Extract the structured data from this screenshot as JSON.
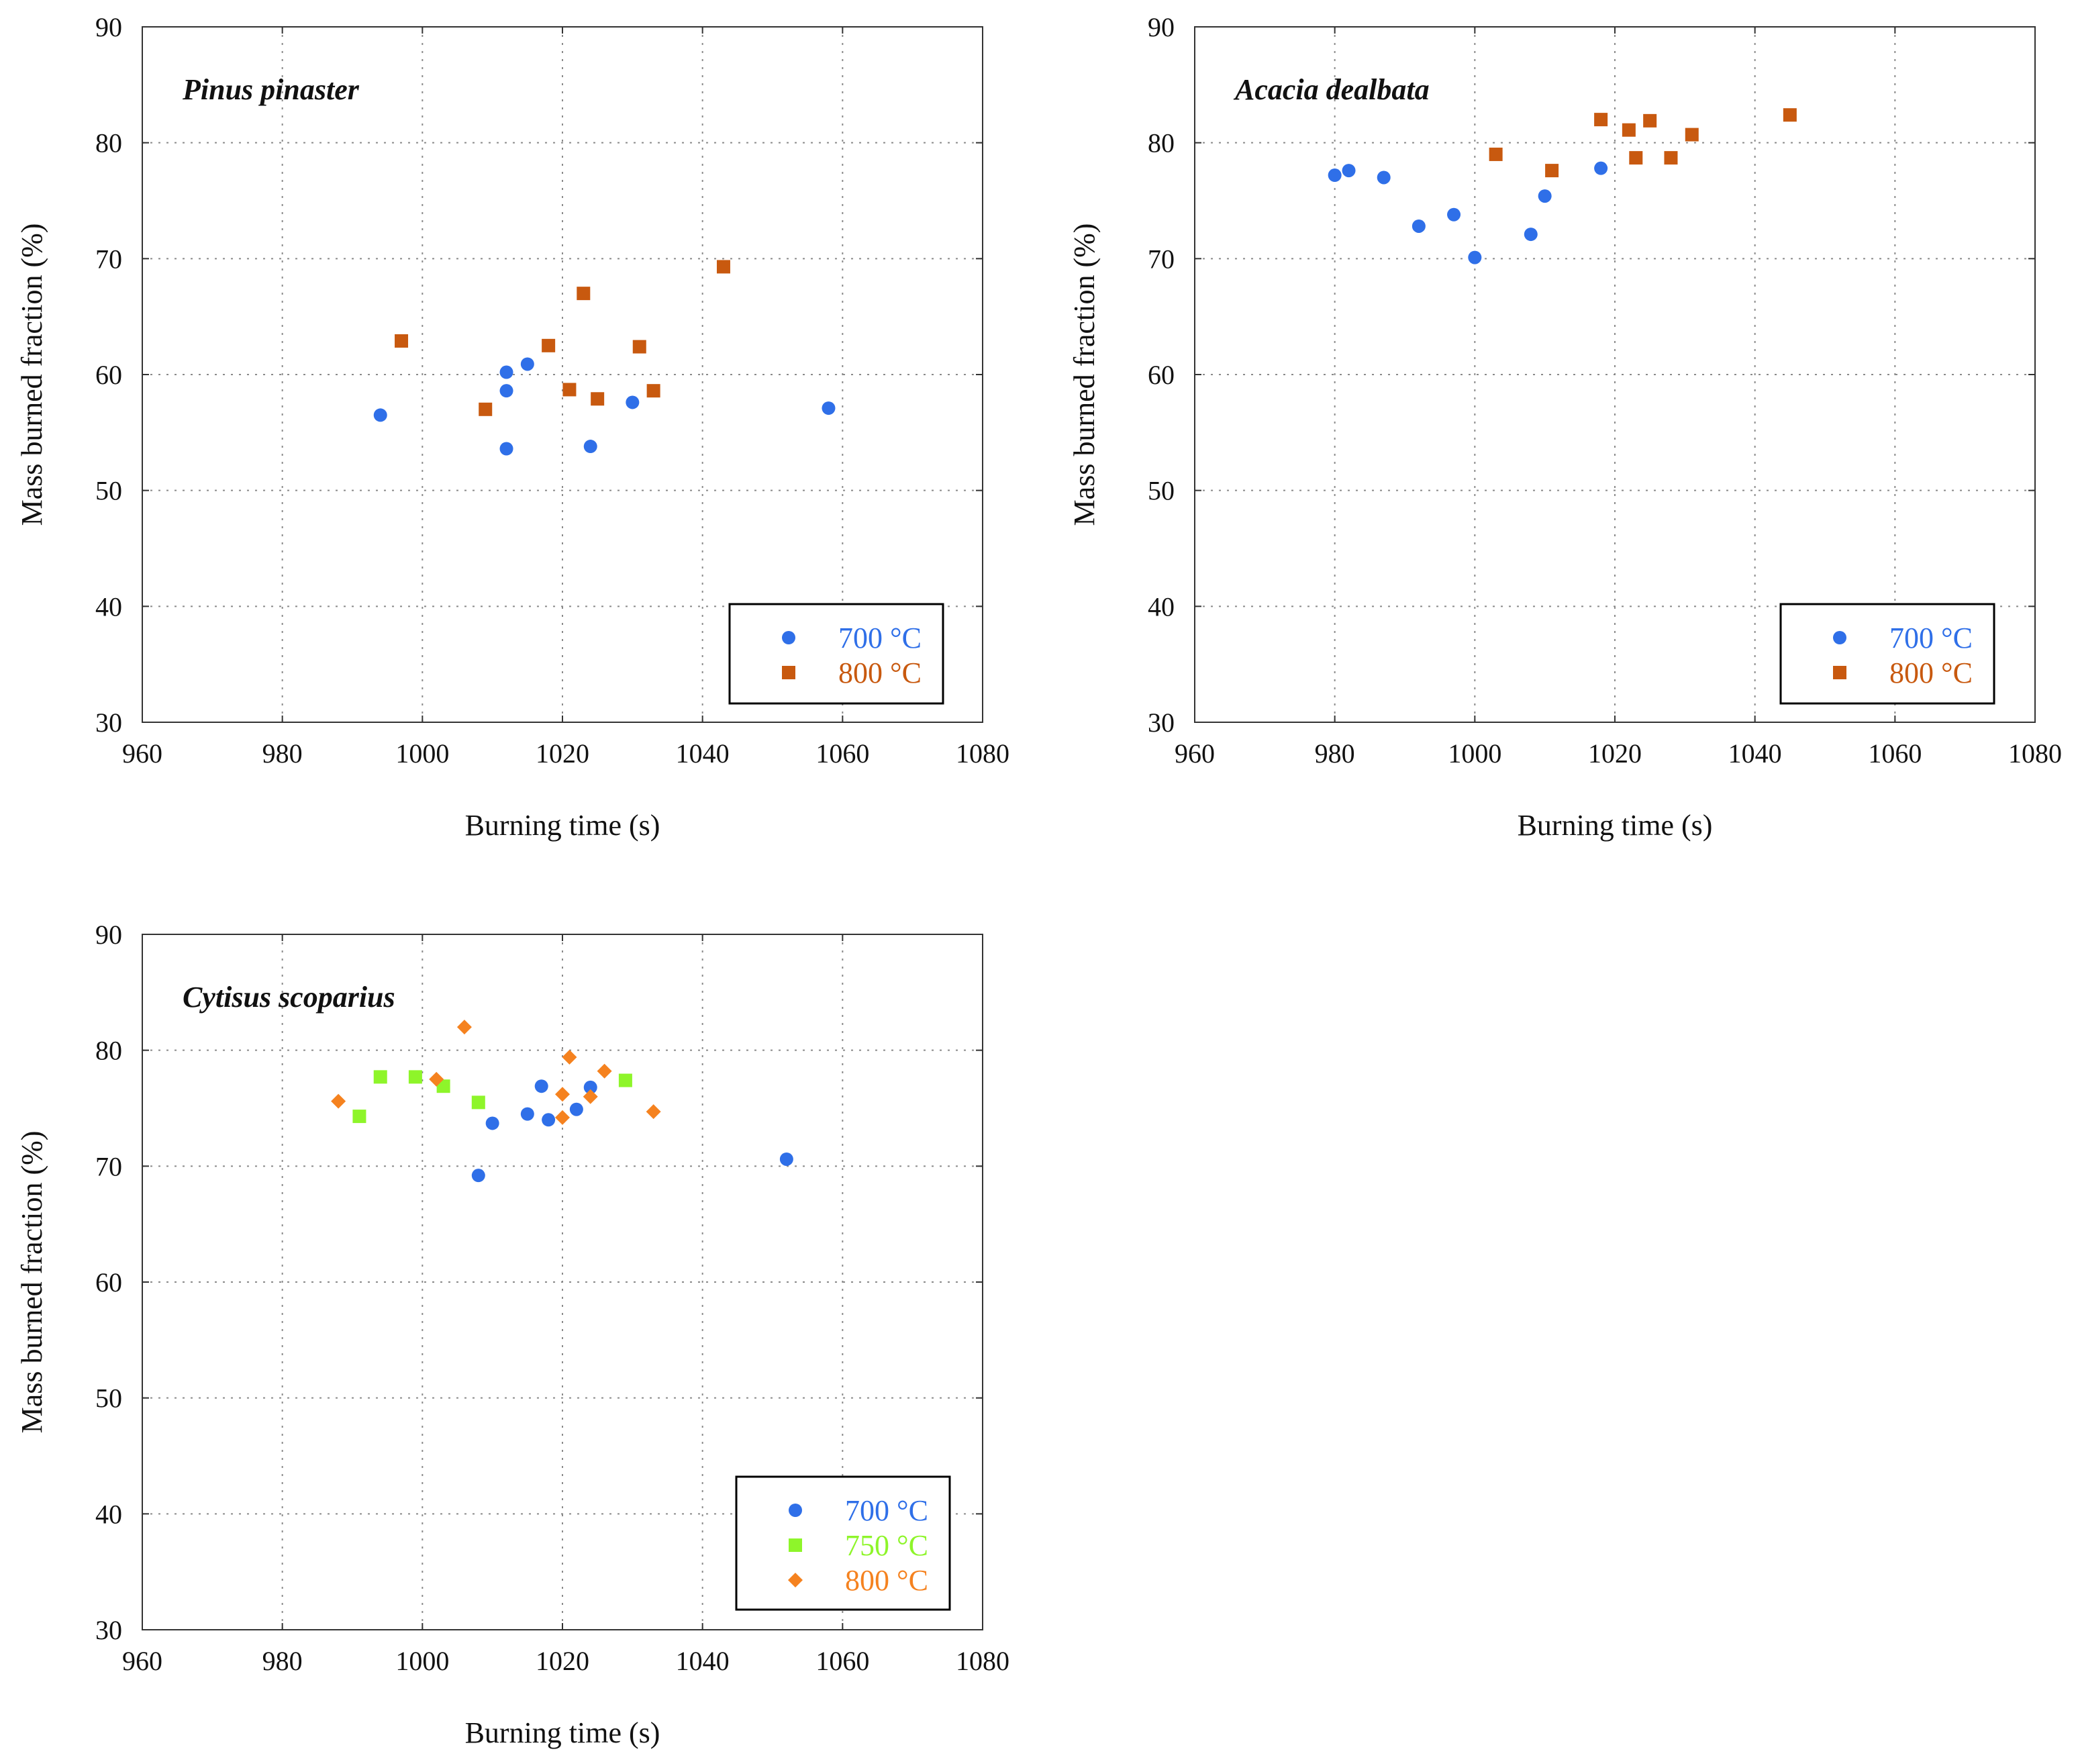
{
  "chart_data": [
    {
      "type": "scatter",
      "title": "Pinus pinaster",
      "xlabel": "Burning time (s)",
      "ylabel": "Mass burned fraction (%)",
      "xlim": [
        960,
        1080
      ],
      "ylim": [
        30,
        90
      ],
      "xticks": [
        960,
        980,
        1000,
        1020,
        1040,
        1060,
        1080
      ],
      "yticks": [
        30,
        40,
        50,
        60,
        70,
        80,
        90
      ],
      "grid": true,
      "legend_position": "bottom-right",
      "series": [
        {
          "name": "700 °C",
          "marker": "circle",
          "color": "#2f6fe8",
          "x": [
            994,
            1012,
            1012,
            1015,
            1012,
            1024,
            1030,
            1058
          ],
          "y": [
            56.5,
            60.2,
            58.6,
            60.9,
            53.6,
            53.8,
            57.6,
            57.1
          ]
        },
        {
          "name": "800 °C",
          "marker": "square",
          "color": "#c8590f",
          "x": [
            997,
            1009,
            1018,
            1021,
            1023,
            1025,
            1031,
            1033,
            1043
          ],
          "y": [
            62.9,
            57.0,
            62.5,
            58.7,
            67.0,
            57.9,
            62.4,
            58.6,
            69.3
          ]
        }
      ]
    },
    {
      "type": "scatter",
      "title": "Acacia dealbata",
      "xlabel": "Burning time (s)",
      "ylabel": "Mass burned fraction (%)",
      "xlim": [
        960,
        1080
      ],
      "ylim": [
        30,
        90
      ],
      "xticks": [
        960,
        980,
        1000,
        1020,
        1040,
        1060,
        1080
      ],
      "yticks": [
        30,
        40,
        50,
        60,
        70,
        80,
        90
      ],
      "grid": true,
      "legend_position": "bottom-right",
      "series": [
        {
          "name": "700 °C",
          "marker": "circle",
          "color": "#2f6fe8",
          "x": [
            980,
            982,
            987,
            992,
            997,
            1000,
            1008,
            1010,
            1018
          ],
          "y": [
            77.2,
            77.6,
            77.0,
            72.8,
            73.8,
            70.1,
            72.1,
            75.4,
            77.8
          ]
        },
        {
          "name": "800 °C",
          "marker": "square",
          "color": "#c8590f",
          "x": [
            1003,
            1011,
            1018,
            1022,
            1023,
            1025,
            1028,
            1031,
            1045
          ],
          "y": [
            79.0,
            77.6,
            82.0,
            81.1,
            78.7,
            81.9,
            78.7,
            80.7,
            82.4
          ]
        }
      ]
    },
    {
      "type": "scatter",
      "title": "Cytisus scoparius",
      "xlabel": "Burning time (s)",
      "ylabel": "Mass burned fraction (%)",
      "xlim": [
        960,
        1080
      ],
      "ylim": [
        30,
        90
      ],
      "xticks": [
        960,
        980,
        1000,
        1020,
        1040,
        1060,
        1080
      ],
      "yticks": [
        30,
        40,
        50,
        60,
        70,
        80,
        90
      ],
      "grid": true,
      "legend_position": "bottom-right",
      "series": [
        {
          "name": "700 °C",
          "marker": "circle",
          "color": "#2f6fe8",
          "x": [
            1008,
            1010,
            1015,
            1017,
            1018,
            1022,
            1024,
            1052
          ],
          "y": [
            69.2,
            73.7,
            74.5,
            76.9,
            74.0,
            74.9,
            76.8,
            70.6
          ]
        },
        {
          "name": "750 °C",
          "marker": "square",
          "color": "#8ef52a",
          "x": [
            991,
            994,
            999,
            1003,
            1008,
            1029
          ],
          "y": [
            74.3,
            77.7,
            77.7,
            76.9,
            75.5,
            77.4
          ]
        },
        {
          "name": "800 °C",
          "marker": "diamond",
          "color": "#f5821f",
          "x": [
            988,
            1002,
            1006,
            1020,
            1020,
            1021,
            1024,
            1026,
            1033
          ],
          "y": [
            75.6,
            77.5,
            82.0,
            76.2,
            74.2,
            79.4,
            76.0,
            78.2,
            74.7
          ]
        }
      ]
    }
  ]
}
